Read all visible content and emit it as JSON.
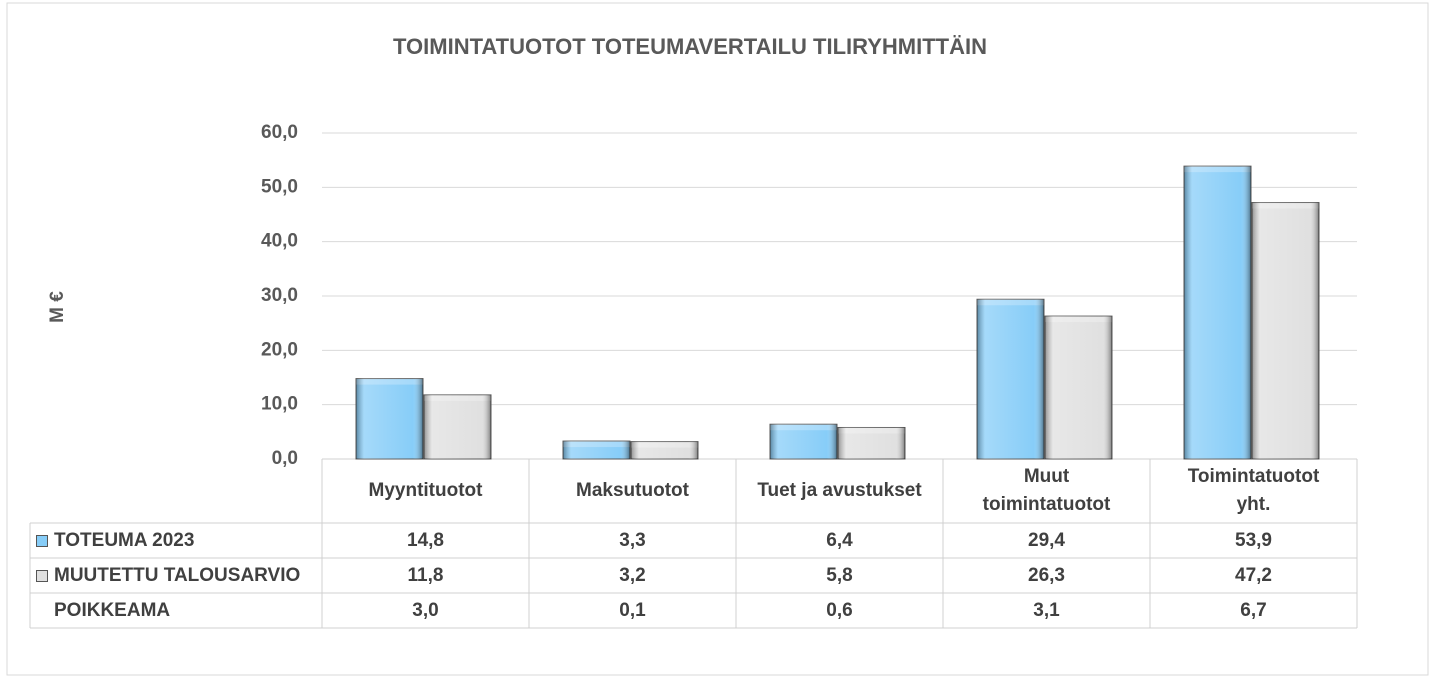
{
  "chart_data": {
    "type": "bar",
    "title": "TOIMINTATUOTOT TOTEUMAVERTAILU TILIRYHMITTÄIN",
    "y_label": "M €",
    "categories": [
      "Myyntituotot",
      "Maksutuotot",
      "Tuet ja avustukset",
      "Muut\ntoimintatuotot",
      "Toimintatuotot\nyht."
    ],
    "series": [
      {
        "name": "TOTEUMA 2023",
        "color": "#87cdf8",
        "values": [
          14.8,
          3.3,
          6.4,
          29.4,
          53.9
        ],
        "value_labels": [
          "14,8",
          "3,3",
          "6,4",
          "29,4",
          "53,9"
        ]
      },
      {
        "name": "MUUTETTU TALOUSARVIO",
        "color": "#e0e0e0",
        "values": [
          11.8,
          3.2,
          5.8,
          26.3,
          47.2
        ],
        "value_labels": [
          "11,8",
          "3,2",
          "5,8",
          "26,3",
          "47,2"
        ]
      }
    ],
    "deviation": {
      "name": "POIKKEAMA",
      "values": [
        3.0,
        0.1,
        0.6,
        3.1,
        6.7
      ],
      "value_labels": [
        "3,0",
        "0,1",
        "0,6",
        "3,1",
        "6,7"
      ]
    },
    "ylim": [
      0,
      60
    ],
    "yticks": [
      {
        "value": 0,
        "label": "0,0"
      },
      {
        "value": 10,
        "label": "10,0"
      },
      {
        "value": 20,
        "label": "20,0"
      },
      {
        "value": 30,
        "label": "30,0"
      },
      {
        "value": 40,
        "label": "40,0"
      },
      {
        "value": 50,
        "label": "50,0"
      },
      {
        "value": 60,
        "label": "60,0"
      }
    ],
    "grid": true
  }
}
